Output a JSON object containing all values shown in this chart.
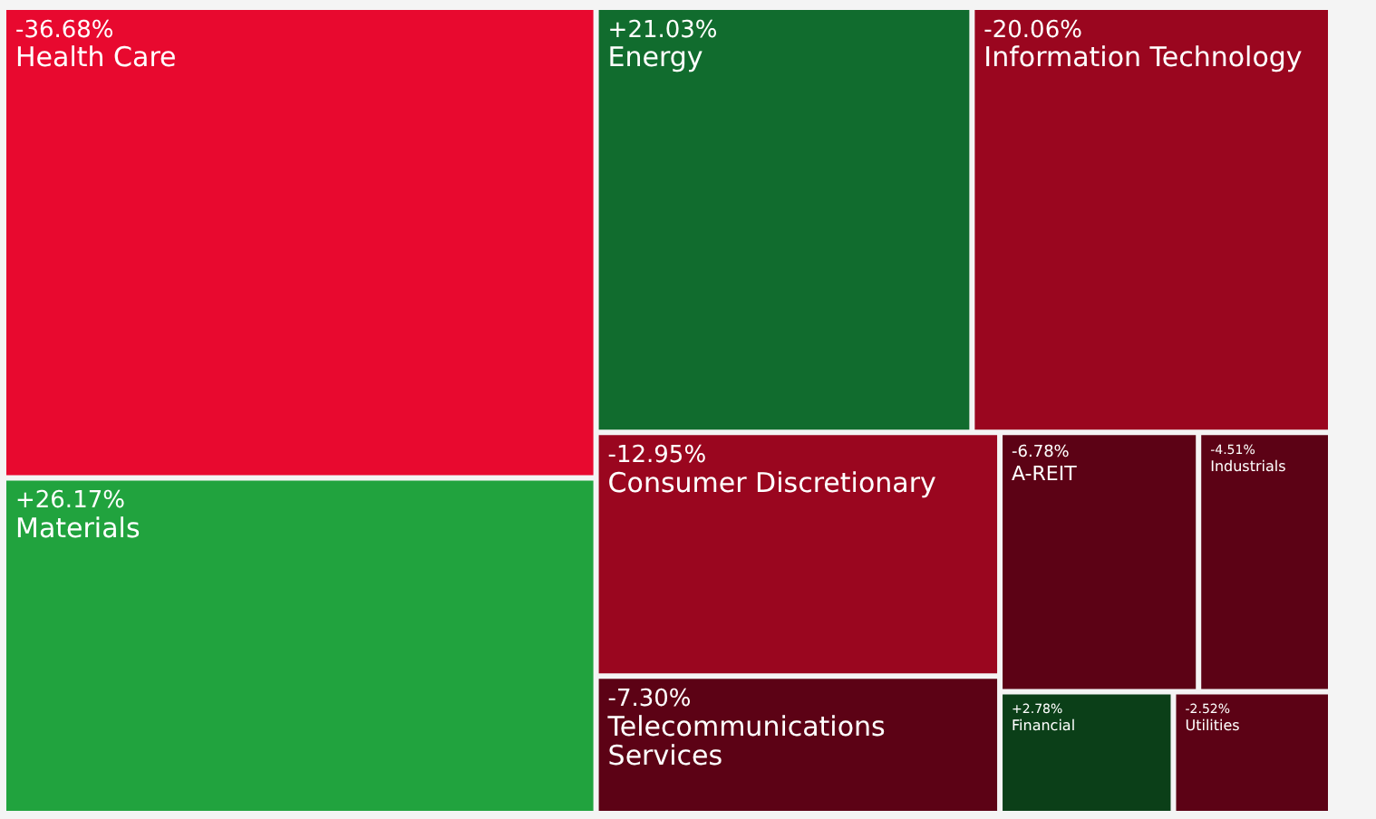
{
  "chart_data": {
    "type": "other",
    "categories": [
      "Health Care",
      "Materials",
      "Energy",
      "Information Technology",
      "Consumer Discretionary",
      "Telecommunications Services",
      "A-REIT",
      "Industrials",
      "Financial",
      "Utilities"
    ],
    "values": [
      -36.68,
      26.17,
      21.03,
      -20.06,
      -12.95,
      -7.3,
      -6.78,
      -4.51,
      2.78,
      -2.52
    ],
    "value_labels": [
      "-36.68%",
      "+26.17%",
      "+21.03%",
      "-20.06%",
      "-12.95%",
      "-7.30%",
      "-6.78%",
      "-4.51%",
      "+2.78%",
      "-2.52%"
    ],
    "colors": [
      "#e8092f",
      "#21a33e",
      "#116c2e",
      "#9a061f",
      "#9a061f",
      "#5c0215",
      "#5c0215",
      "#5c0215",
      "#0b3f18",
      "#5c0215"
    ]
  }
}
